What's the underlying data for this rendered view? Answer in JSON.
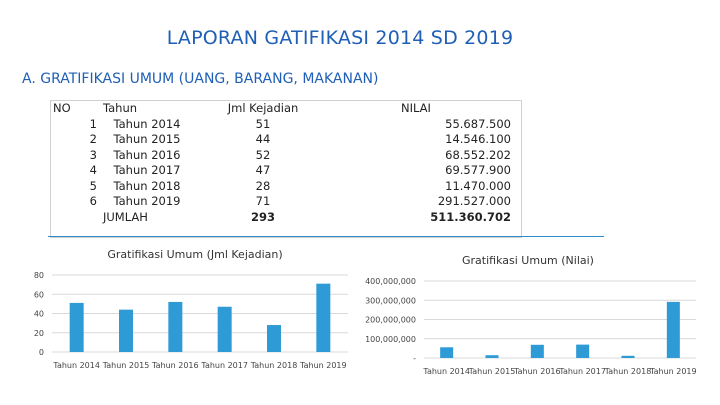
{
  "page": {
    "title": "LAPORAN GATIFIKASI 2014 SD 2019",
    "subtitle": "A. GRATIFIKASI UMUM (UANG, BARANG, MAKANAN)"
  },
  "table": {
    "headers": [
      "NO",
      "Tahun",
      "Jml Kejadian",
      "NILAI"
    ],
    "rows": [
      {
        "no": "1",
        "year": "Tahun 2014",
        "count": "51",
        "value": "55.687.500"
      },
      {
        "no": "2",
        "year": "Tahun 2015",
        "count": "44",
        "value": "14.546.100"
      },
      {
        "no": "3",
        "year": "Tahun 2016",
        "count": "52",
        "value": "68.552.202"
      },
      {
        "no": "4",
        "year": "Tahun 2017",
        "count": "47",
        "value": "69.577.900"
      },
      {
        "no": "5",
        "year": "Tahun 2018",
        "count": "28",
        "value": "11.470.000"
      },
      {
        "no": "6",
        "year": "Tahun 2019",
        "count": "71",
        "value": "291.527.000"
      }
    ],
    "total": {
      "label": "JUMLAH",
      "count": "293",
      "value": "511.360.702"
    }
  },
  "colors": {
    "accent": "#1f5fb5",
    "bar": "#2e9ad6",
    "grid": "#d9d9d9",
    "rule": "#2e8bcc"
  },
  "chart_data": [
    {
      "type": "bar",
      "title": "Gratifikasi Umum (Jml Kejadian)",
      "categories": [
        "Tahun 2014",
        "Tahun 2015",
        "Tahun 2016",
        "Tahun 2017",
        "Tahun 2018",
        "Tahun 2019"
      ],
      "values": [
        51,
        44,
        52,
        47,
        28,
        71
      ],
      "ylim": [
        0,
        80
      ],
      "yticks": [
        0,
        20,
        40,
        60,
        80
      ],
      "ytick_labels": [
        "0",
        "20",
        "40",
        "60",
        "80"
      ],
      "grid": true,
      "legend": false
    },
    {
      "type": "bar",
      "title": "Gratifikasi Umum (Nilai)",
      "categories": [
        "Tahun 2014",
        "Tahun 2015",
        "Tahun 2016",
        "Tahun 2017",
        "Tahun 2018",
        "Tahun 2019"
      ],
      "values": [
        55687500,
        14546100,
        68552202,
        69577900,
        11470000,
        291527000
      ],
      "ylim": [
        0,
        400000000
      ],
      "yticks": [
        0,
        100000000,
        200000000,
        300000000,
        400000000
      ],
      "ytick_labels": [
        "-",
        "100,000,000",
        "200,000,000",
        "300,000,000",
        "400,000,000"
      ],
      "grid": true,
      "legend": false
    }
  ]
}
